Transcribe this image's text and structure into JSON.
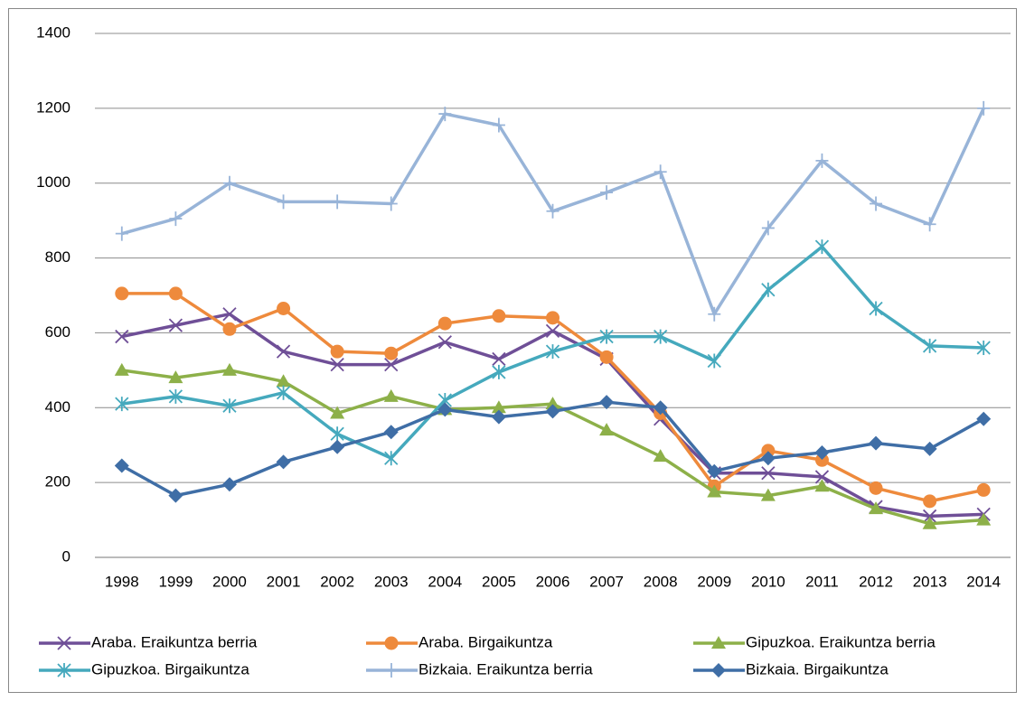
{
  "chart_data": {
    "type": "line",
    "categories": [
      "1998",
      "1999",
      "2000",
      "2001",
      "2002",
      "2003",
      "2004",
      "2005",
      "2006",
      "2007",
      "2008",
      "2009",
      "2010",
      "2011",
      "2012",
      "2013",
      "2014"
    ],
    "series": [
      {
        "name": "Araba. Eraikuntza berria",
        "color": "#6f4f97",
        "marker": "x",
        "values": [
          590,
          620,
          650,
          550,
          515,
          515,
          575,
          530,
          605,
          530,
          370,
          225,
          225,
          215,
          135,
          110,
          115
        ]
      },
      {
        "name": "Araba. Birgaikuntza",
        "color": "#ee8a3c",
        "marker": "circle",
        "values": [
          705,
          705,
          610,
          665,
          550,
          545,
          625,
          645,
          640,
          535,
          385,
          190,
          285,
          260,
          185,
          150,
          180
        ]
      },
      {
        "name": "Gipuzkoa. Eraikuntza berria",
        "color": "#8db049",
        "marker": "triangle",
        "values": [
          500,
          480,
          500,
          470,
          385,
          430,
          395,
          400,
          410,
          340,
          270,
          175,
          165,
          190,
          130,
          90,
          100
        ]
      },
      {
        "name": "Gipuzkoa. Birgaikuntza",
        "color": "#45a9bd",
        "marker": "asterisk",
        "values": [
          410,
          430,
          405,
          440,
          330,
          265,
          420,
          495,
          550,
          590,
          590,
          525,
          715,
          830,
          665,
          565,
          560
        ]
      },
      {
        "name": "Bizkaia. Eraikuntza berria",
        "color": "#98b4d8",
        "marker": "plus",
        "values": [
          865,
          905,
          1000,
          950,
          950,
          945,
          1185,
          1155,
          925,
          975,
          1030,
          650,
          880,
          1060,
          945,
          890,
          1200
        ]
      },
      {
        "name": "Bizkaia. Birgaikuntza",
        "color": "#3f6ea6",
        "marker": "diamond",
        "values": [
          245,
          165,
          195,
          255,
          295,
          335,
          395,
          375,
          390,
          415,
          400,
          230,
          265,
          280,
          305,
          290,
          370
        ]
      }
    ],
    "ylim": [
      0,
      1400
    ],
    "yticks": [
      0,
      200,
      400,
      600,
      800,
      1000,
      1200,
      1400
    ],
    "grid": true
  }
}
